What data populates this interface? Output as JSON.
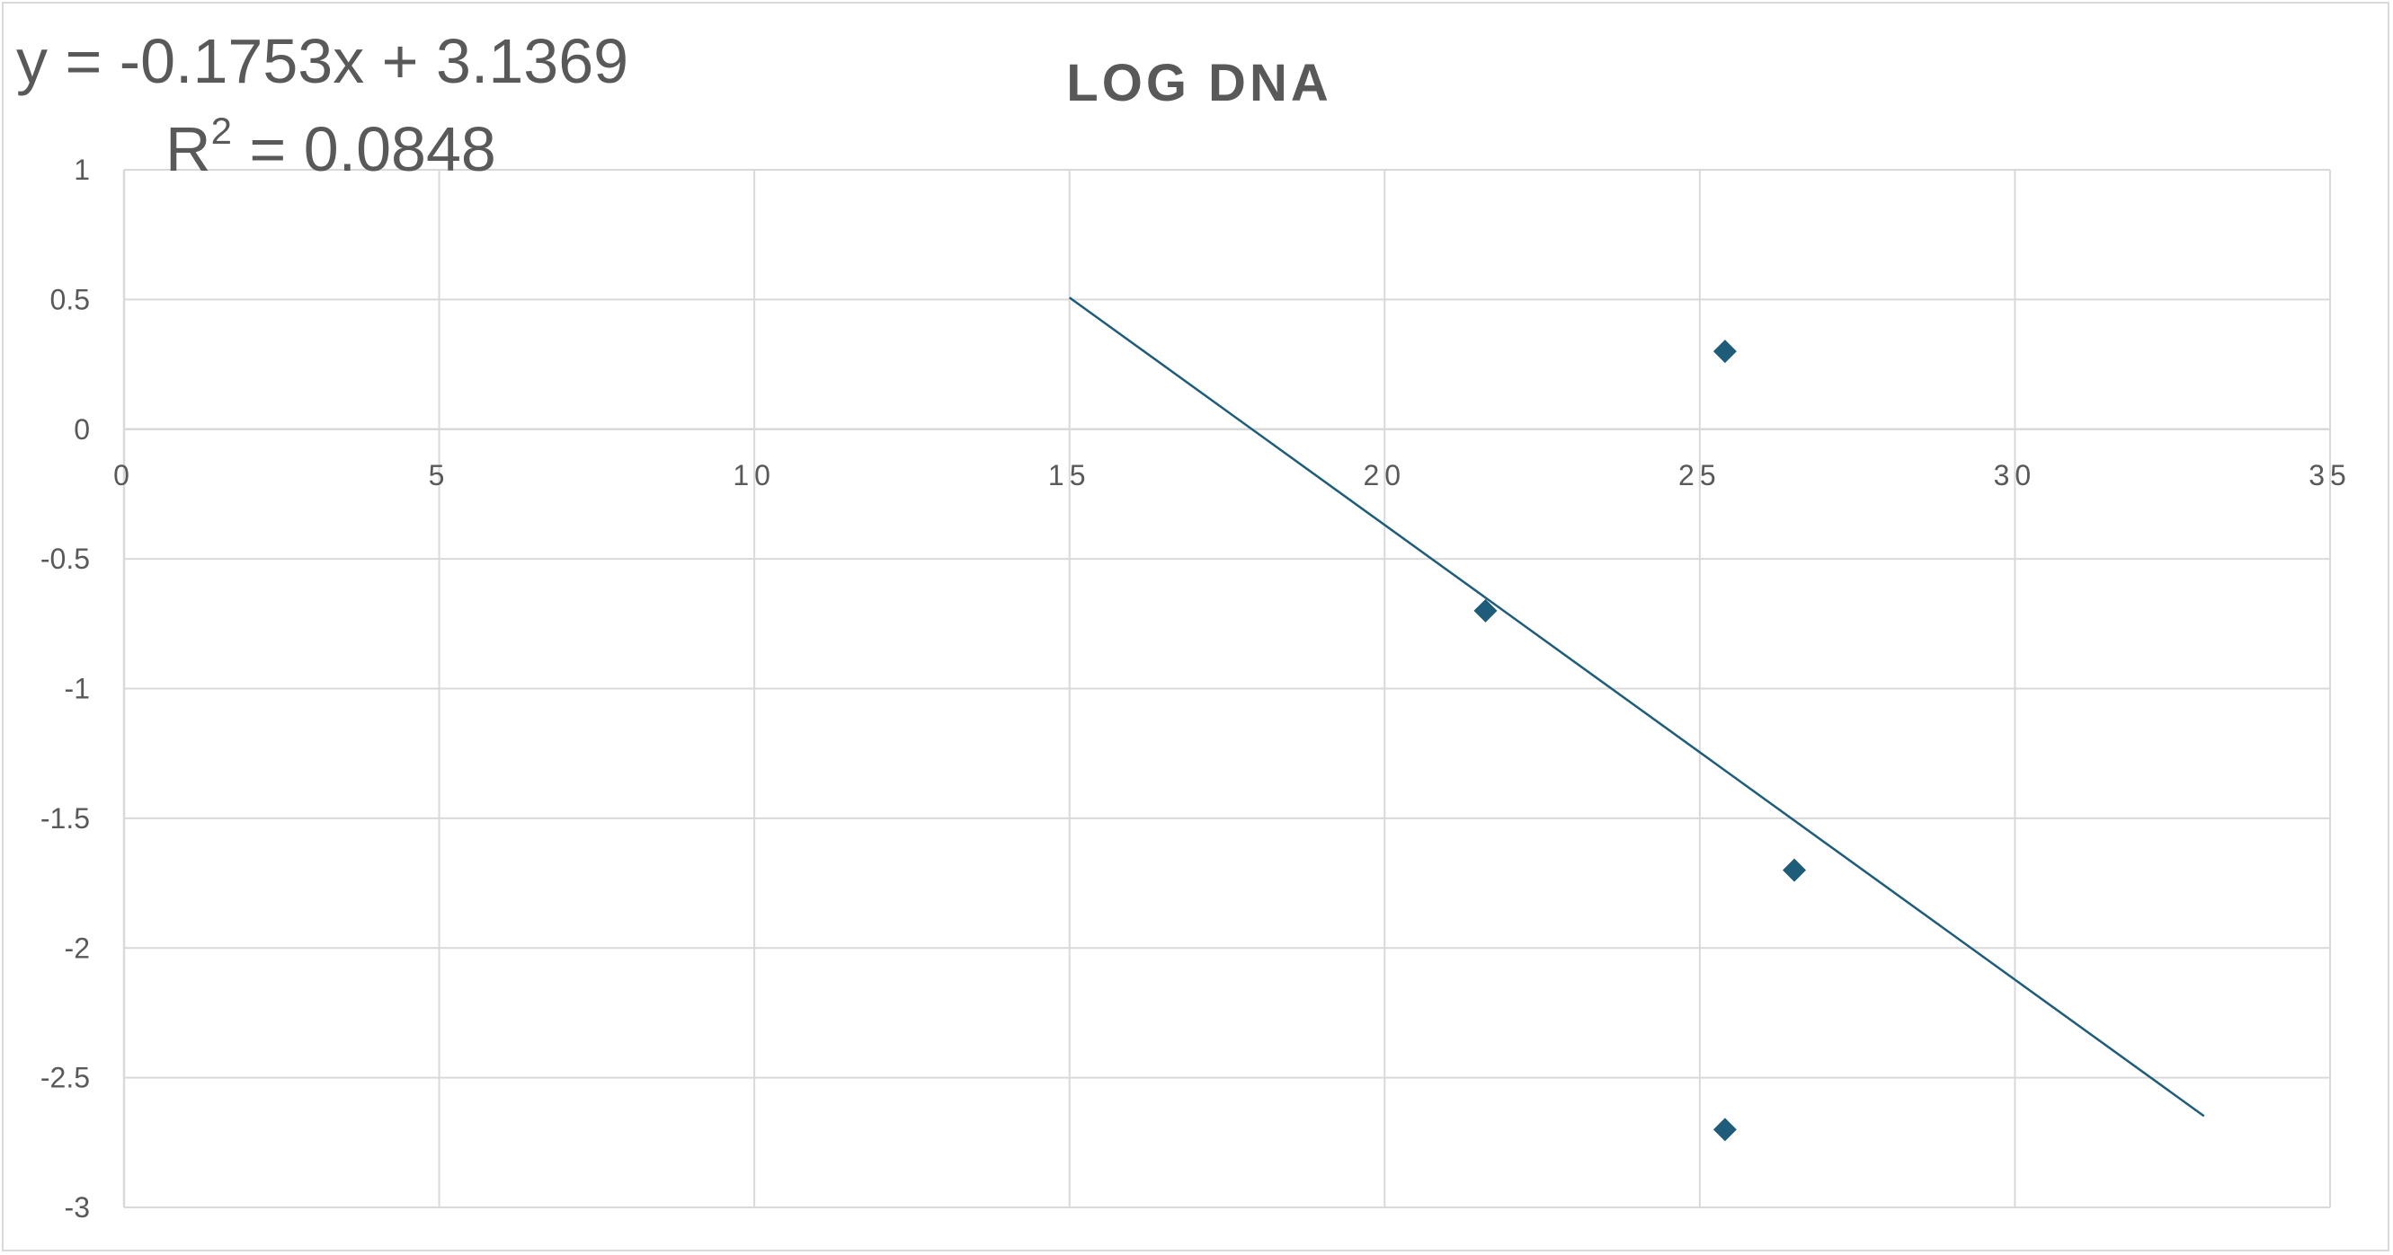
{
  "chart_data": {
    "type": "scatter",
    "title": "LOG DNA",
    "xlabel": "",
    "ylabel": "",
    "xlim": [
      0,
      35
    ],
    "ylim": [
      -3,
      1
    ],
    "x_ticks": [
      0,
      5,
      10,
      15,
      20,
      25,
      30,
      35
    ],
    "y_ticks": [
      1,
      0.5,
      0,
      -0.5,
      -1,
      -1.5,
      -2,
      -2.5,
      -3
    ],
    "grid": true,
    "legend": "none",
    "series": [
      {
        "color": "#1f5c7a",
        "marker": "diamond",
        "points": [
          {
            "x": 21.6,
            "y": -0.7
          },
          {
            "x": 25.4,
            "y": 0.3
          },
          {
            "x": 26.5,
            "y": -1.7
          },
          {
            "x": 25.4,
            "y": -2.7
          }
        ]
      }
    ],
    "trendline": {
      "type": "linear",
      "slope": -0.1753,
      "intercept": 3.1369,
      "x_range": [
        15,
        33
      ],
      "color": "#1f5c7a",
      "equation_label": "y = -0.1753x + 3.1369",
      "r2_prefix": "R",
      "r2_sup": "2",
      "r2_suffix": " = 0.0848"
    }
  }
}
